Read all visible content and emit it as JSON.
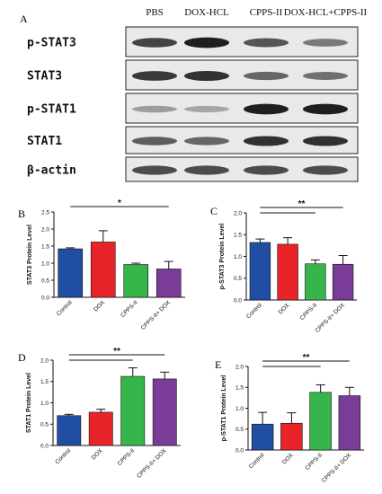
{
  "figure": {
    "panel_a_letter": "A",
    "lanes": [
      "PBS",
      "DOX-HCL",
      "CPPS-II",
      "DOX-HCL+CPPS-II"
    ],
    "blots": [
      {
        "protein": "p-STAT3",
        "intensity": [
          0.75,
          0.95,
          0.65,
          0.45
        ]
      },
      {
        "protein": "STAT3",
        "intensity": [
          0.8,
          0.85,
          0.55,
          0.5
        ]
      },
      {
        "protein": "p-STAT1",
        "intensity": [
          0.25,
          0.2,
          0.95,
          0.95
        ]
      },
      {
        "protein": "STAT1",
        "intensity": [
          0.6,
          0.55,
          0.85,
          0.85
        ]
      },
      {
        "protein": "β-actin",
        "intensity": [
          0.7,
          0.7,
          0.7,
          0.7
        ]
      }
    ]
  },
  "chart_data": [
    {
      "panel": "B",
      "type": "bar",
      "categories": [
        "Control",
        "DOX",
        "CPPS-II",
        "CPPS-II+ DOX"
      ],
      "values": [
        1.42,
        1.62,
        0.96,
        0.83
      ],
      "errors": [
        0.03,
        0.33,
        0.04,
        0.22
      ],
      "colors": [
        "#1f4ea3",
        "#e8232a",
        "#36b54a",
        "#7a3c97"
      ],
      "ylabel": "STAT3 Protein Level",
      "ylim": [
        0,
        2.5
      ],
      "yticks": [
        "0.0",
        "0.5",
        "1.0",
        "1.5",
        "2.0",
        "2.5"
      ],
      "significance": [
        {
          "from": 0,
          "to": 3,
          "label": "*"
        }
      ]
    },
    {
      "panel": "C",
      "type": "bar",
      "categories": [
        "Control",
        "DOX",
        "CPPS-II",
        "CPPS-II+ DOX"
      ],
      "values": [
        1.32,
        1.28,
        0.83,
        0.82
      ],
      "errors": [
        0.08,
        0.15,
        0.09,
        0.2
      ],
      "colors": [
        "#1f4ea3",
        "#e8232a",
        "#36b54a",
        "#7a3c97"
      ],
      "ylabel": "p-STAT3 Protein Level",
      "ylim": [
        0,
        2.0
      ],
      "yticks": [
        "0.0",
        "0.5",
        "1.0",
        "1.5",
        "2.0"
      ],
      "significance": [
        {
          "from": 0,
          "to": 2,
          "label": ""
        },
        {
          "from": 0,
          "to": 3,
          "label": "**"
        }
      ]
    },
    {
      "panel": "D",
      "type": "bar",
      "categories": [
        "Control",
        "DOX",
        "CPPS-II",
        "CPPS-II+ DOX"
      ],
      "values": [
        0.7,
        0.78,
        1.62,
        1.56
      ],
      "errors": [
        0.03,
        0.07,
        0.2,
        0.16
      ],
      "colors": [
        "#1f4ea3",
        "#e8232a",
        "#36b54a",
        "#7a3c97"
      ],
      "ylabel": "STAT1 Protein Level",
      "ylim": [
        0,
        2.0
      ],
      "yticks": [
        "0.0",
        "0.5",
        "1.0",
        "1.5",
        "2.0"
      ],
      "significance": [
        {
          "from": 0,
          "to": 2,
          "label": ""
        },
        {
          "from": 0,
          "to": 3,
          "label": "**"
        }
      ]
    },
    {
      "panel": "E",
      "type": "bar",
      "categories": [
        "Control",
        "DOX",
        "CPPS-II",
        "CPPS-II+ DOX"
      ],
      "values": [
        0.62,
        0.64,
        1.38,
        1.3
      ],
      "errors": [
        0.28,
        0.25,
        0.18,
        0.2
      ],
      "colors": [
        "#1f4ea3",
        "#e8232a",
        "#36b54a",
        "#7a3c97"
      ],
      "ylabel": "p-STAT1 Protein Level",
      "ylim": [
        0,
        2.0
      ],
      "yticks": [
        "0.0",
        "0.5",
        "1.0",
        "1.5",
        "2.0"
      ],
      "significance": [
        {
          "from": 0,
          "to": 2,
          "label": ""
        },
        {
          "from": 0,
          "to": 3,
          "label": "**"
        }
      ]
    }
  ]
}
